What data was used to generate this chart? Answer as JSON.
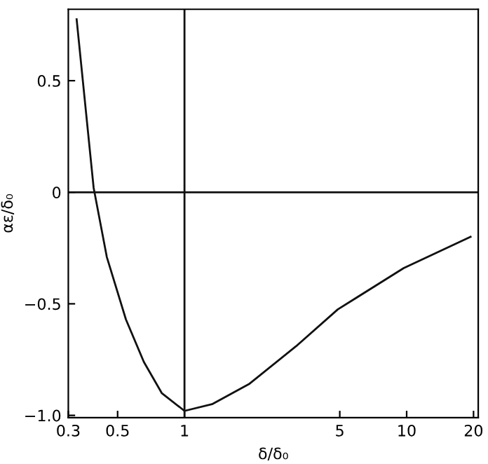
{
  "chart_data": {
    "type": "line",
    "xlabel": "δ/δ₀",
    "ylabel": "αε/δ₀",
    "log": "x",
    "x": [
      0.327,
      0.39,
      0.447,
      0.545,
      0.656,
      0.79,
      1.0,
      1.33,
      1.95,
      3.18,
      4.9,
      9.7,
      19.4
    ],
    "series": [
      {
        "color": "#111111",
        "values": [
          0.775,
          0.02,
          -0.29,
          -0.57,
          -0.76,
          -0.9,
          -0.98,
          -0.95,
          -0.86,
          -0.69,
          -0.525,
          -0.34,
          -0.2
        ]
      }
    ],
    "xlim": [
      0.3,
      21
    ],
    "ylim": [
      -1.01,
      0.82
    ],
    "xticks": [
      0.3,
      0.5,
      1,
      5,
      10,
      20
    ],
    "yticks": [
      0.5,
      0,
      {
        "value": -0.5,
        "label": "−0.5"
      },
      {
        "value": -1.0,
        "label": "−1.0"
      }
    ],
    "ref_lines": [
      {
        "axis": "x",
        "value": 1,
        "color": "#111111"
      },
      {
        "axis": "y",
        "value": 0,
        "color": "#111111"
      }
    ],
    "grid": false,
    "legend": false,
    "marker": "none",
    "line_style": "solid"
  }
}
